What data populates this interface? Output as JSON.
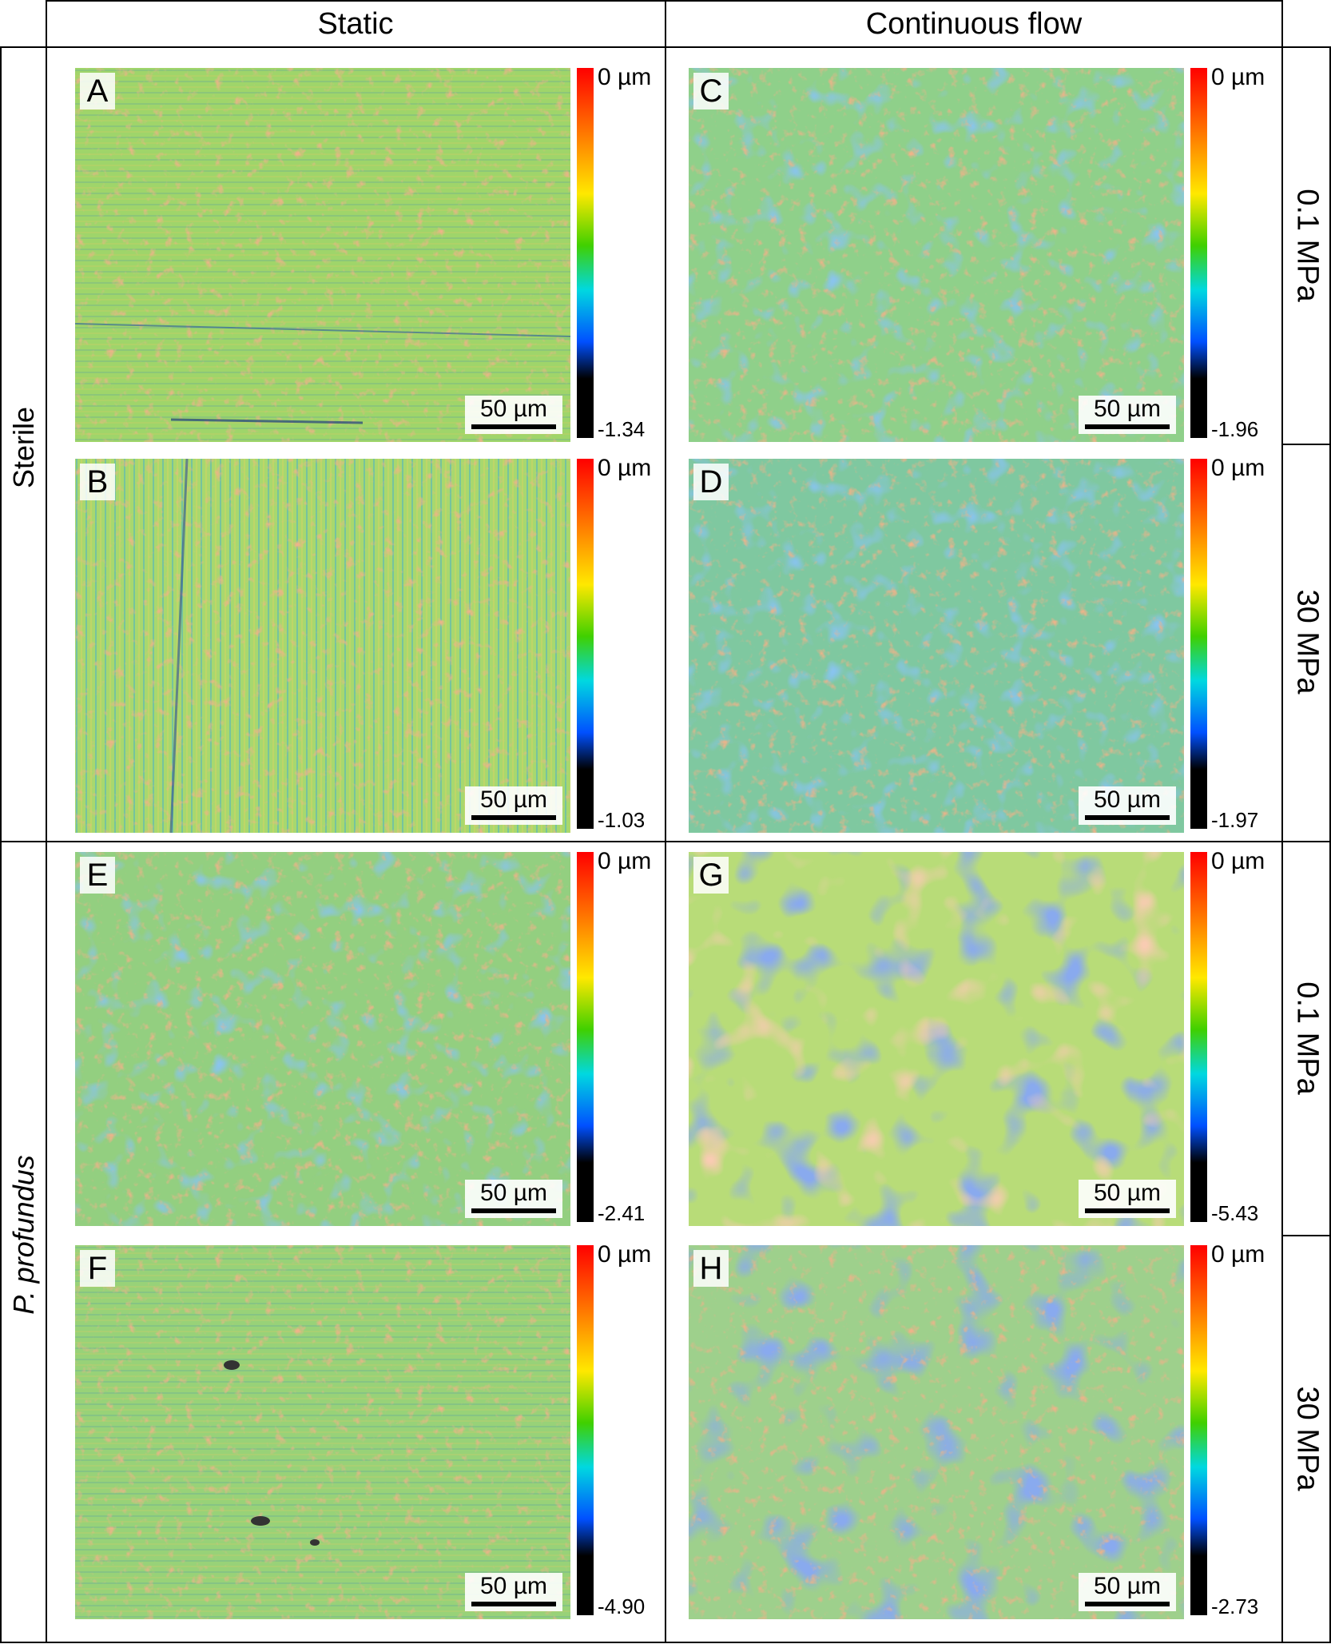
{
  "columns": {
    "static": "Static",
    "flow": "Continuous flow"
  },
  "rows": {
    "sterile": "Sterile",
    "profundus": "P. profundus"
  },
  "pressures": {
    "p1": "0.1 MPa",
    "p2": "30 MPa",
    "p3": "0.1 MPa",
    "p4": "30 MPa"
  },
  "colorbar_top": "0 µm",
  "panels": [
    {
      "letter": "A",
      "scale": "50 µm",
      "min": "-1.34"
    },
    {
      "letter": "B",
      "scale": "50 µm",
      "min": "-1.03"
    },
    {
      "letter": "C",
      "scale": "50 µm",
      "min": "-1.96"
    },
    {
      "letter": "D",
      "scale": "50 µm",
      "min": "-1.97"
    },
    {
      "letter": "E",
      "scale": "50 µm",
      "min": "-2.41"
    },
    {
      "letter": "F",
      "scale": "50 µm",
      "min": "-4.90"
    },
    {
      "letter": "G",
      "scale": "50 µm",
      "min": "-5.43"
    },
    {
      "letter": "H",
      "scale": "50 µm",
      "min": "-2.73"
    }
  ]
}
